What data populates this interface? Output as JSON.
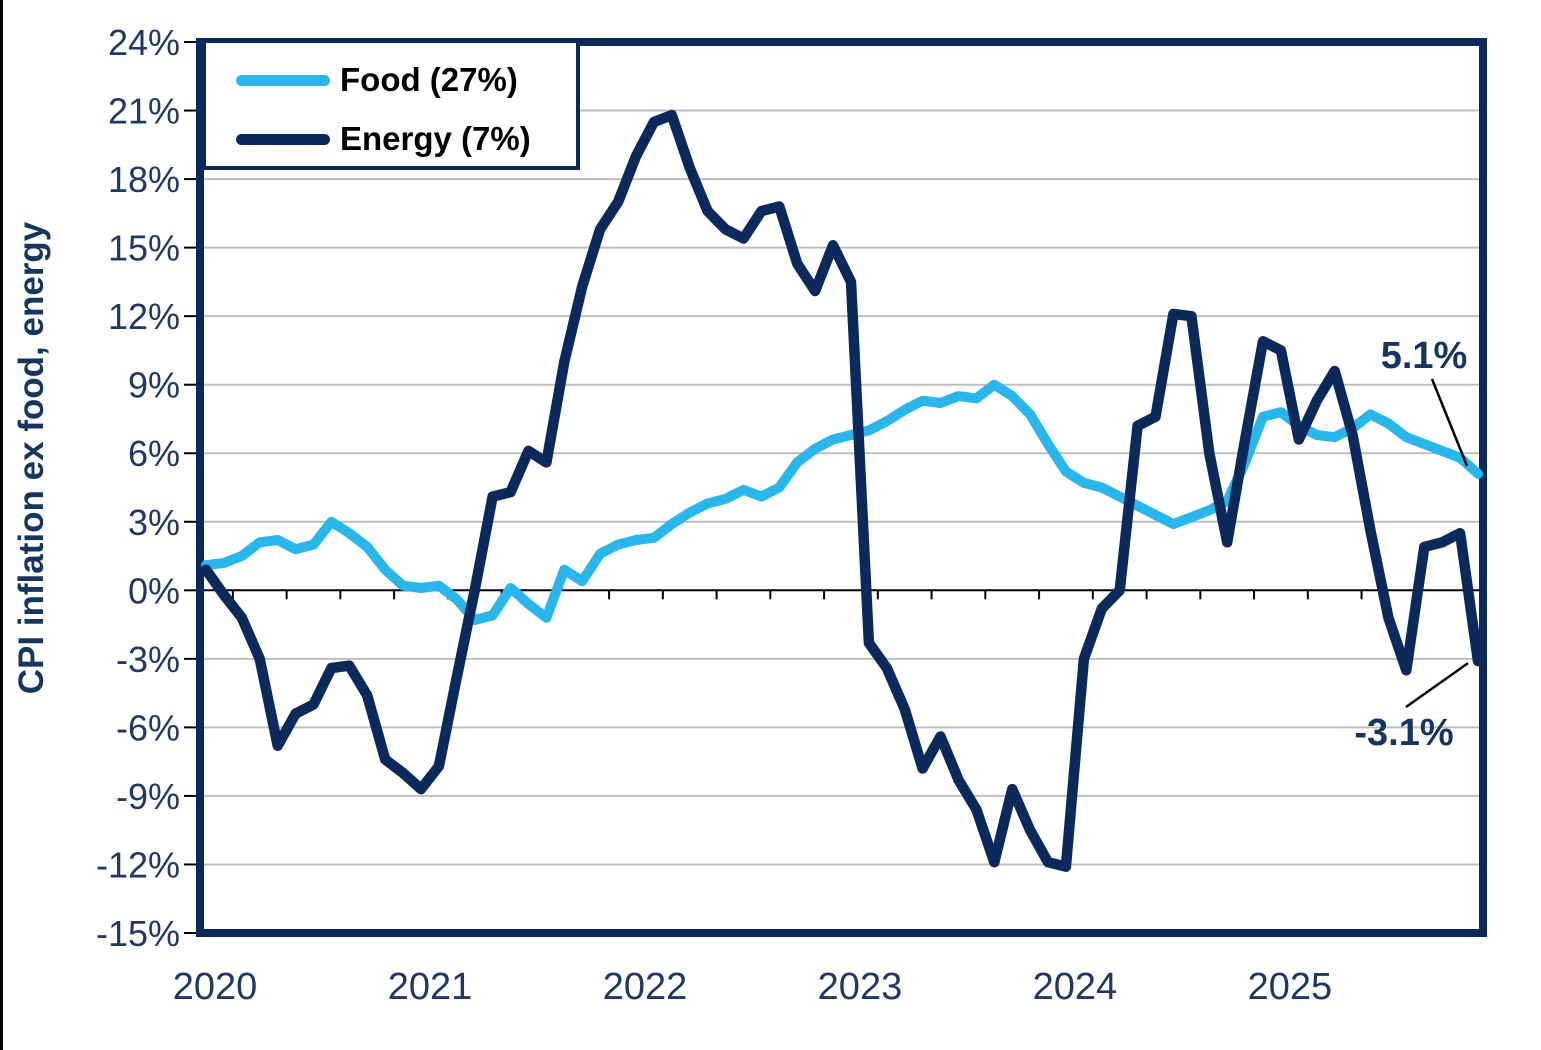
{
  "chart_data": {
    "type": "line",
    "title": "",
    "ylabel": "CPI inflation ex food, energy",
    "x_unit": "month",
    "x_range": [
      "2020-01",
      "2025-12"
    ],
    "x_tick_labels": [
      "2020",
      "2021",
      "2022",
      "2023",
      "2024",
      "2025"
    ],
    "ylim": [
      -15,
      24
    ],
    "y_ticks": [
      -15,
      -12,
      -9,
      -6,
      -3,
      0,
      3,
      6,
      9,
      12,
      15,
      18,
      21,
      24
    ],
    "y_tick_labels": [
      "-15%",
      "-12%",
      "-9%",
      "-6%",
      "-3%",
      "0%",
      "3%",
      "6%",
      "9%",
      "12%",
      "15%",
      "18%",
      "21%",
      "24%"
    ],
    "grid": "horizontal",
    "legend_position": "top-left",
    "series": [
      {
        "name": "Food (27%)",
        "color": "#29B6EA",
        "values": [
          1.1,
          1.2,
          1.5,
          2.1,
          2.2,
          1.8,
          2.0,
          3.0,
          2.5,
          1.9,
          0.9,
          0.2,
          0.1,
          0.2,
          -0.4,
          -1.3,
          -1.1,
          0.1,
          -0.6,
          -1.2,
          0.9,
          0.4,
          1.6,
          2.0,
          2.2,
          2.3,
          2.9,
          3.4,
          3.8,
          4.0,
          4.4,
          4.1,
          4.5,
          5.6,
          6.2,
          6.6,
          6.8,
          7.0,
          7.4,
          7.9,
          8.3,
          8.2,
          8.5,
          8.4,
          9.0,
          8.5,
          7.7,
          6.4,
          5.2,
          4.7,
          4.5,
          4.1,
          3.7,
          3.3,
          2.9,
          3.2,
          3.5,
          3.9,
          5.6,
          7.6,
          7.8,
          7.2,
          6.8,
          6.7,
          7.1,
          7.7,
          7.3,
          6.7,
          6.4,
          6.1,
          5.8,
          5.1
        ]
      },
      {
        "name": "Energy (7%)",
        "color": "#0C295C",
        "values": [
          0.9,
          -0.2,
          -1.2,
          -3.0,
          -6.8,
          -5.4,
          -5.0,
          -3.4,
          -3.3,
          -4.6,
          -7.4,
          -8.0,
          -8.7,
          -7.7,
          -3.8,
          0.0,
          4.1,
          4.3,
          6.1,
          5.6,
          10.0,
          13.3,
          15.8,
          17.0,
          19.0,
          20.5,
          20.8,
          18.5,
          16.6,
          15.8,
          15.4,
          16.6,
          16.8,
          14.3,
          13.1,
          15.1,
          13.5,
          -2.3,
          -3.4,
          -5.2,
          -7.8,
          -6.4,
          -8.3,
          -9.6,
          -11.9,
          -8.7,
          -10.5,
          -11.9,
          -12.1,
          -3.0,
          -0.8,
          0.0,
          7.2,
          7.6,
          12.1,
          12.0,
          6.0,
          2.1,
          6.6,
          10.9,
          10.5,
          6.6,
          8.3,
          9.6,
          6.8,
          2.6,
          -1.2,
          -3.5,
          1.9,
          2.1,
          2.5,
          -3.1
        ]
      }
    ],
    "annotations": [
      {
        "label": "5.1%",
        "series": "Food (27%)",
        "x": "2025-12",
        "value": 5.1
      },
      {
        "label": "-3.1%",
        "series": "Energy (7%)",
        "x": "2025-12",
        "value": -3.1
      }
    ]
  },
  "colors": {
    "food_line": "#29B6EA",
    "energy_line": "#0C295C",
    "plot_frame": "#0C295C",
    "gridline": "#BFBFBF",
    "zero_axis": "#000000",
    "axis_label": "#1F3864",
    "annotation_text": "#17365D",
    "legend_text": "#000000",
    "page_border": "#000000"
  }
}
